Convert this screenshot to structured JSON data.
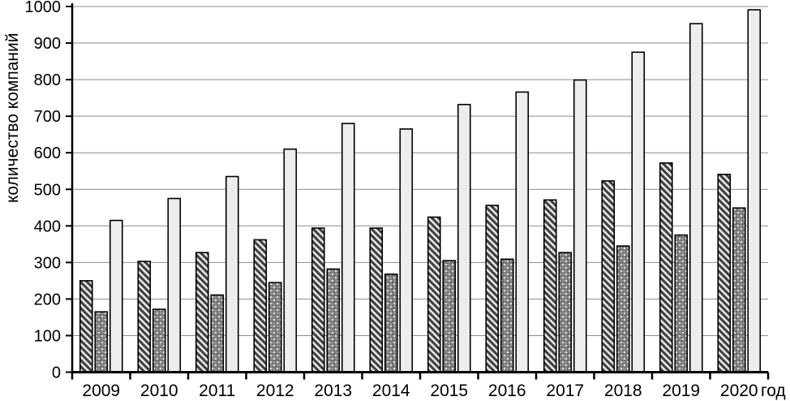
{
  "chart_data": {
    "type": "bar",
    "ylabel": "количество компаний",
    "xlabel": "год",
    "categories": [
      "2009",
      "2010",
      "2011",
      "2012",
      "2013",
      "2014",
      "2015",
      "2016",
      "2017",
      "2018",
      "2019",
      "2020"
    ],
    "series": [
      {
        "name": "series-hatched",
        "pattern": "diagonal-hatch",
        "values": [
          250,
          303,
          327,
          362,
          394,
          394,
          424,
          456,
          471,
          523,
          572,
          541
        ]
      },
      {
        "name": "series-dotted",
        "pattern": "dotted",
        "values": [
          165,
          172,
          211,
          245,
          282,
          268,
          305,
          309,
          327,
          345,
          375,
          449
        ]
      },
      {
        "name": "series-plain",
        "pattern": "plain-light",
        "values": [
          415,
          475,
          535,
          610,
          680,
          665,
          732,
          766,
          799,
          875,
          953,
          991
        ]
      }
    ],
    "y_ticks": [
      0,
      100,
      200,
      300,
      400,
      500,
      600,
      700,
      800,
      900,
      1000
    ],
    "ylim": [
      0,
      1000
    ],
    "grid": true,
    "legend": "none",
    "colors": {
      "gridline": "#8c8c8c",
      "axis": "#000000",
      "bar_border": "#000000",
      "plain_fill": "#ededed",
      "hatch_bg": "#e4e4e4",
      "hatch_stroke": "#3f3f3f",
      "dots_bg": "#8f8f8f",
      "dots_fill": "#d9d9d9",
      "dots_stroke": "#3a3a3a"
    }
  }
}
